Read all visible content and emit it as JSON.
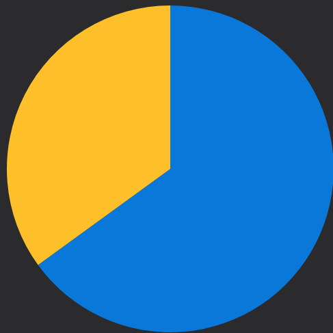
{
  "chart_data": {
    "type": "pie",
    "values": [
      65,
      35
    ],
    "colors": [
      "#0a78d8",
      "#fec02a"
    ]
  }
}
